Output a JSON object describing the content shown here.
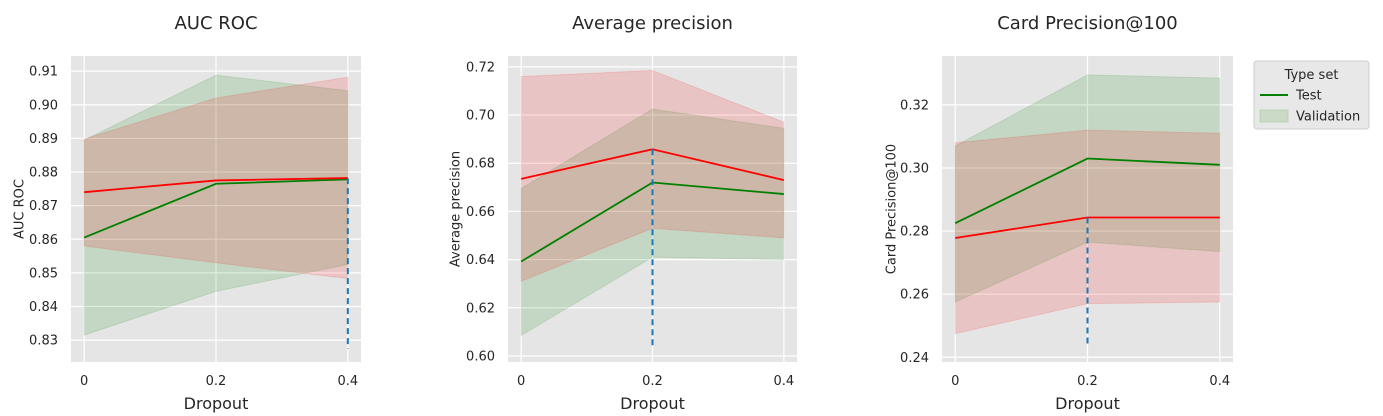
{
  "colors": {
    "test": "#008000",
    "validation": "#ff0000",
    "optimum_marker": "#1f77b4",
    "plot_background": "#e5e5e5",
    "grid": "#ffffff"
  },
  "legend": {
    "title": "Type set",
    "entries": [
      {
        "label": "Test",
        "kind": "line",
        "color": "#008000"
      },
      {
        "label": "Validation",
        "kind": "band",
        "color": "#a8c8a0"
      }
    ],
    "placement": "outside-right-top"
  },
  "chart_data": [
    {
      "type": "line",
      "title": "AUC ROC",
      "xlabel": "Dropout",
      "ylabel": "AUC ROC",
      "x": [
        0,
        0.2,
        0.4
      ],
      "x_tick_labels": [
        "0",
        "0.2",
        "0.4"
      ],
      "xlim": [
        -0.02,
        0.42
      ],
      "ylim": [
        0.8235,
        0.9145
      ],
      "y_ticks": [
        0.83,
        0.84,
        0.85,
        0.86,
        0.87,
        0.88,
        0.89,
        0.9,
        0.91
      ],
      "y_tick_labels": [
        "0.83",
        "0.84",
        "0.85",
        "0.86",
        "0.87",
        "0.88",
        "0.89",
        "0.90",
        "0.91"
      ],
      "grid": true,
      "series": [
        {
          "name": "Test",
          "color": "#008000",
          "values": [
            0.8605,
            0.8765,
            0.8778
          ],
          "band_lower": [
            0.8315,
            0.8445,
            0.8525
          ],
          "band_upper": [
            0.8895,
            0.9088,
            0.9042
          ]
        },
        {
          "name": "Validation",
          "color": "#ff0000",
          "values": [
            0.874,
            0.8775,
            0.8782
          ],
          "band_lower": [
            0.858,
            0.853,
            0.8483
          ],
          "band_upper": [
            0.8898,
            0.902,
            0.9082
          ]
        }
      ],
      "optimum": {
        "x": 0.4,
        "y_from": 0.8275,
        "y_to": 0.8782
      }
    },
    {
      "type": "line",
      "title": "Average precision",
      "xlabel": "Dropout",
      "ylabel": "Average precision",
      "x": [
        0,
        0.2,
        0.4
      ],
      "x_tick_labels": [
        "0",
        "0.2",
        "0.4"
      ],
      "xlim": [
        -0.02,
        0.42
      ],
      "ylim": [
        0.5975,
        0.7245
      ],
      "y_ticks": [
        0.6,
        0.62,
        0.64,
        0.66,
        0.68,
        0.7,
        0.72
      ],
      "y_tick_labels": [
        "0.60",
        "0.62",
        "0.64",
        "0.66",
        "0.68",
        "0.70",
        "0.72"
      ],
      "grid": true,
      "series": [
        {
          "name": "Test",
          "color": "#008000",
          "values": [
            0.6392,
            0.672,
            0.6672
          ],
          "band_lower": [
            0.6085,
            0.641,
            0.64
          ],
          "band_upper": [
            0.6695,
            0.7025,
            0.6945
          ]
        },
        {
          "name": "Validation",
          "color": "#ff0000",
          "values": [
            0.6735,
            0.6858,
            0.673
          ],
          "band_lower": [
            0.631,
            0.653,
            0.649
          ],
          "band_upper": [
            0.716,
            0.7185,
            0.697
          ]
        }
      ],
      "optimum": {
        "x": 0.2,
        "y_from": 0.6035,
        "y_to": 0.6858
      }
    },
    {
      "type": "line",
      "title": "Card Precision@100",
      "xlabel": "Dropout",
      "ylabel": "Card Precision@100",
      "x": [
        0,
        0.2,
        0.4
      ],
      "x_tick_labels": [
        "0",
        "0.2",
        "0.4"
      ],
      "xlim": [
        -0.02,
        0.42
      ],
      "ylim": [
        0.2385,
        0.3355
      ],
      "y_ticks": [
        0.24,
        0.26,
        0.28,
        0.3,
        0.32
      ],
      "y_tick_labels": [
        "0.24",
        "0.26",
        "0.28",
        "0.30",
        "0.32"
      ],
      "grid": true,
      "series": [
        {
          "name": "Test",
          "color": "#008000",
          "values": [
            0.2825,
            0.303,
            0.301
          ],
          "band_lower": [
            0.2575,
            0.2765,
            0.2735
          ],
          "band_upper": [
            0.307,
            0.3295,
            0.3285
          ]
        },
        {
          "name": "Validation",
          "color": "#ff0000",
          "values": [
            0.2778,
            0.2843,
            0.2843
          ],
          "band_lower": [
            0.2475,
            0.257,
            0.2575
          ],
          "band_upper": [
            0.308,
            0.312,
            0.311
          ]
        }
      ],
      "optimum": {
        "x": 0.2,
        "y_from": 0.2435,
        "y_to": 0.2843
      }
    }
  ]
}
